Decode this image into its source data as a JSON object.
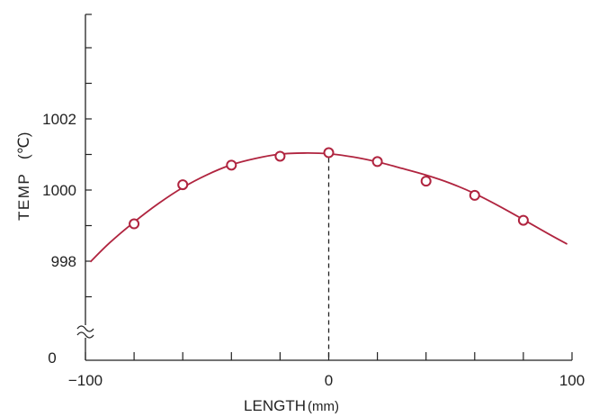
{
  "chart_data": {
    "type": "line",
    "title": "",
    "xlabel": "LENGTH",
    "xlabel_unit": "(mm)",
    "ylabel": "TEMP",
    "ylabel_unit": "(℃)",
    "xlim": [
      -100,
      100
    ],
    "ylim_display": [
      997,
      1004
    ],
    "y_axis_break": true,
    "y_axis_zero_label": "0",
    "x_ticks": [
      -100,
      -80,
      -60,
      -40,
      -20,
      0,
      20,
      40,
      60,
      80,
      100
    ],
    "x_tick_labels": [
      {
        "value": -100,
        "text": "−100"
      },
      {
        "value": 0,
        "text": "0"
      },
      {
        "value": 100,
        "text": "100"
      }
    ],
    "y_ticks": [
      997,
      998,
      999,
      1000,
      1001,
      1002,
      1003,
      1004
    ],
    "y_tick_labels": [
      {
        "value": 998,
        "text": "998"
      },
      {
        "value": 1000,
        "text": "1000"
      },
      {
        "value": 1002,
        "text": "1002"
      }
    ],
    "vertical_reference_x": 0,
    "series": [
      {
        "kind": "measured",
        "x": [
          -80,
          -60,
          -40,
          -20,
          0,
          20,
          40,
          60,
          80
        ],
        "y": [
          999.05,
          1000.15,
          1000.7,
          1000.95,
          1001.05,
          1000.8,
          1000.25,
          999.85,
          999.15
        ]
      },
      {
        "kind": "fit",
        "x": [
          -98,
          -90,
          -80,
          -70,
          -60,
          -50,
          -40,
          -30,
          -20,
          -10,
          0,
          10,
          20,
          30,
          40,
          50,
          60,
          70,
          80,
          90,
          98
        ],
        "y": [
          997.98,
          998.52,
          999.1,
          999.62,
          1000.07,
          1000.43,
          1000.71,
          1000.89,
          1001.01,
          1001.04,
          1001.02,
          1000.93,
          1000.79,
          1000.61,
          1000.42,
          1000.19,
          999.9,
          999.55,
          999.17,
          998.78,
          998.48
        ]
      }
    ],
    "colors": {
      "line": "#b0243f",
      "axis": "#222222"
    },
    "grid": false,
    "legend": "none"
  }
}
